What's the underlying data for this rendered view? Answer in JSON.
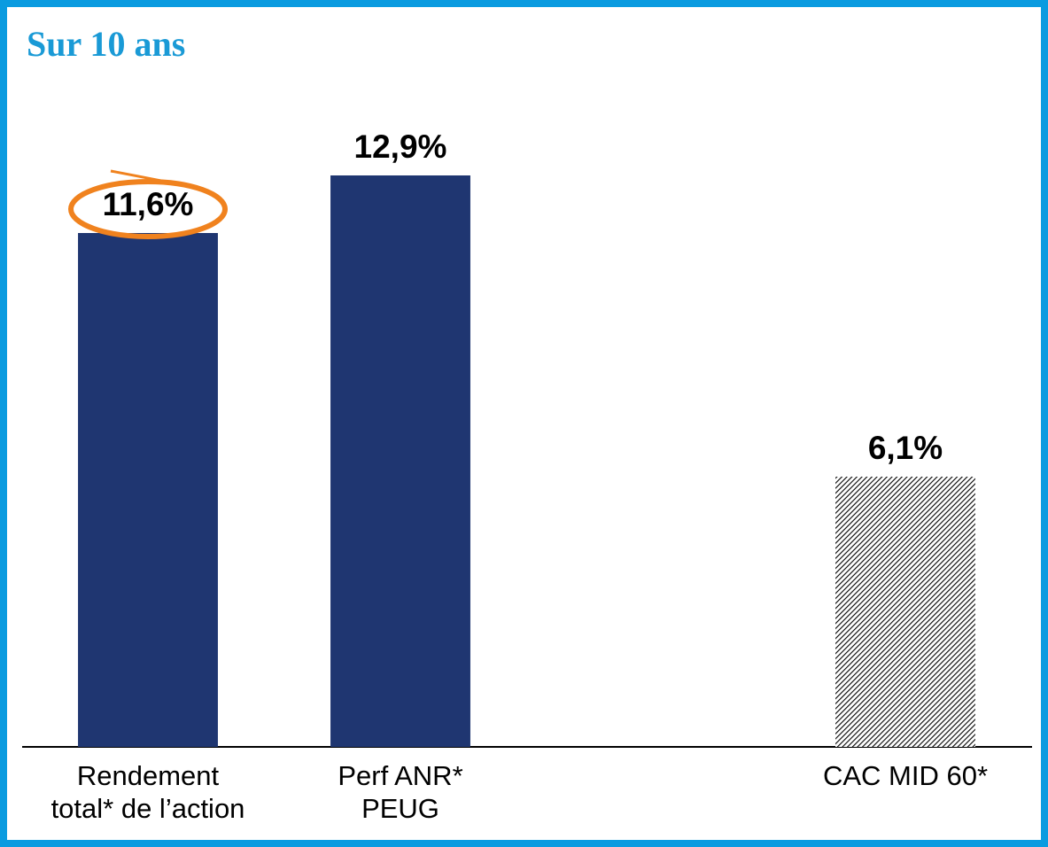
{
  "chart_data": {
    "type": "bar",
    "title": "Sur 10 ans",
    "categories": [
      [
        "Rendement",
        "total* de l’action"
      ],
      [
        "Perf ANR*",
        "PEUG"
      ],
      null,
      [
        "CAC MID 60*"
      ]
    ],
    "values": [
      11.6,
      12.9,
      null,
      6.1
    ],
    "value_labels": [
      "11,6%",
      "12,9%",
      null,
      "6,1%"
    ],
    "colors": [
      "#1f3671",
      "#1f3671",
      null,
      "#000000"
    ],
    "hatched": [
      false,
      false,
      null,
      true
    ],
    "highlight": 0,
    "highlight_color": "#f0821e",
    "ylim": [
      0,
      16
    ]
  }
}
